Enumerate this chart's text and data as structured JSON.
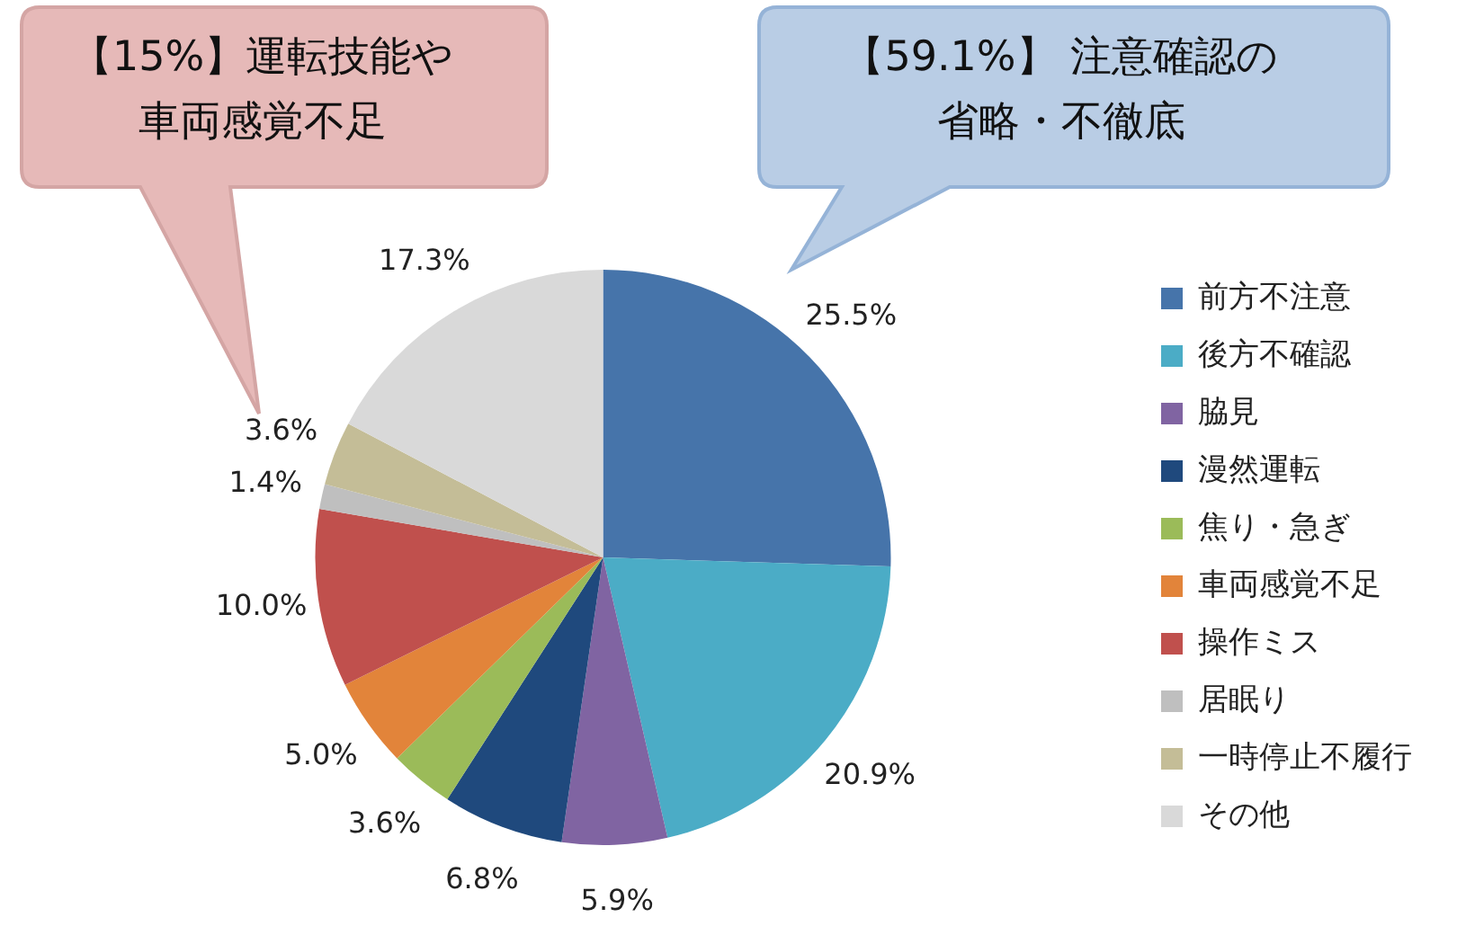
{
  "chart_data": {
    "type": "pie",
    "categories": [
      "前方不注意",
      "後方不確認",
      "脇見",
      "漫然運転",
      "焦り・急ぎ",
      "車両感覚不足",
      "操作ミス",
      "居眠り",
      "一時停止不履行",
      "その他"
    ],
    "values": [
      25.5,
      20.9,
      5.9,
      6.8,
      3.6,
      5.0,
      10.0,
      1.4,
      3.6,
      17.3
    ],
    "value_labels": [
      "25.5%",
      "20.9%",
      "5.9%",
      "6.8%",
      "3.6%",
      "5.0%",
      "10.0%",
      "1.4%",
      "3.6%",
      "17.3%"
    ],
    "colors": [
      "#4674aa",
      "#4bacc6",
      "#8064a2",
      "#1f497d",
      "#9bbb59",
      "#e2843a",
      "#c0504d",
      "#bfbfbf",
      "#c4bd97",
      "#d9d9d9"
    ],
    "legend": "right",
    "annotations": [
      "【15%】運転技能や車両感覚不足",
      "【59.1%】 注意確認の省略・不徹底"
    ]
  }
}
